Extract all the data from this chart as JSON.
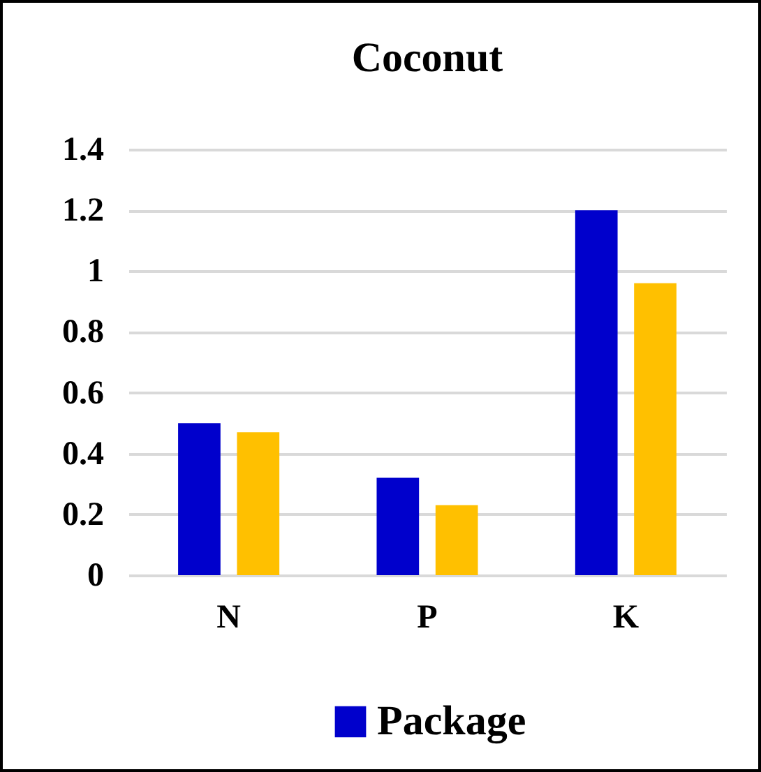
{
  "chart_data": {
    "type": "bar",
    "title": "Coconut",
    "categories": [
      "N",
      "P",
      "K"
    ],
    "series": [
      {
        "name": "Package",
        "color": "#0000cc",
        "values": [
          0.5,
          0.32,
          1.2
        ]
      },
      {
        "color": "#ffc000",
        "values": [
          0.47,
          0.23,
          0.96
        ]
      }
    ],
    "ylim": [
      0,
      1.4
    ],
    "yticks": [
      0,
      0.2,
      0.4,
      0.6,
      0.8,
      1,
      1.2,
      1.4
    ],
    "grid": "y",
    "legend": "bottom"
  }
}
